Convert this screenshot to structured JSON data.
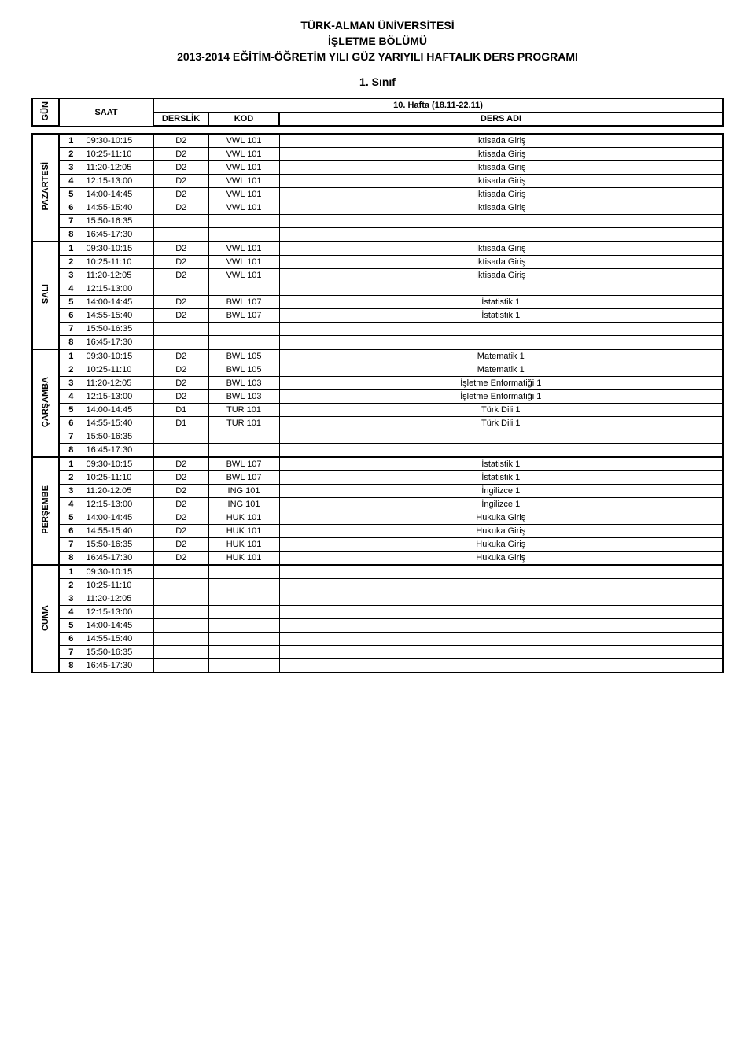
{
  "titles": {
    "uni": "TÜRK-ALMAN ÜNİVERSİTESİ",
    "dept": "İŞLETME BÖLÜMÜ",
    "program": "2013-2014 EĞİTİM-ÖĞRETİM YILI GÜZ YARIYILI HAFTALIK DERS PROGRAMI",
    "sinif": "1. Sınıf"
  },
  "headers": {
    "gun": "GÜN",
    "saat": "SAAT",
    "hafta": "10. Hafta (18.11-22.11)",
    "derslik": "DERSLİK",
    "kod": "KOD",
    "ders_adi": "DERS ADI"
  },
  "days": [
    {
      "name": "PAZARTESİ",
      "rows": [
        {
          "idx": "1",
          "saat": "09:30-10:15",
          "derslik": "D2",
          "kod": "VWL 101",
          "adi": "İktisada Giriş"
        },
        {
          "idx": "2",
          "saat": "10:25-11:10",
          "derslik": "D2",
          "kod": "VWL 101",
          "adi": "İktisada Giriş"
        },
        {
          "idx": "3",
          "saat": "11:20-12:05",
          "derslik": "D2",
          "kod": "VWL 101",
          "adi": "İktisada Giriş"
        },
        {
          "idx": "4",
          "saat": "12:15-13:00",
          "derslik": "D2",
          "kod": "VWL 101",
          "adi": "İktisada Giriş"
        },
        {
          "idx": "5",
          "saat": "14:00-14:45",
          "derslik": "D2",
          "kod": "VWL 101",
          "adi": "İktisada Giriş"
        },
        {
          "idx": "6",
          "saat": "14:55-15:40",
          "derslik": "D2",
          "kod": "VWL 101",
          "adi": "İktisada Giriş"
        },
        {
          "idx": "7",
          "saat": "15:50-16:35",
          "derslik": "",
          "kod": "",
          "adi": ""
        },
        {
          "idx": "8",
          "saat": "16:45-17:30",
          "derslik": "",
          "kod": "",
          "adi": ""
        }
      ]
    },
    {
      "name": "SALI",
      "rows": [
        {
          "idx": "1",
          "saat": "09:30-10:15",
          "derslik": "D2",
          "kod": "VWL 101",
          "adi": "İktisada Giriş"
        },
        {
          "idx": "2",
          "saat": "10:25-11:10",
          "derslik": "D2",
          "kod": "VWL 101",
          "adi": "İktisada Giriş"
        },
        {
          "idx": "3",
          "saat": "11:20-12:05",
          "derslik": "D2",
          "kod": "VWL 101",
          "adi": "İktisada Giriş"
        },
        {
          "idx": "4",
          "saat": "12:15-13:00",
          "derslik": "",
          "kod": "",
          "adi": ""
        },
        {
          "idx": "5",
          "saat": "14:00-14:45",
          "derslik": "D2",
          "kod": "BWL 107",
          "adi": "İstatistik 1"
        },
        {
          "idx": "6",
          "saat": "14:55-15:40",
          "derslik": "D2",
          "kod": "BWL 107",
          "adi": "İstatistik 1"
        },
        {
          "idx": "7",
          "saat": "15:50-16:35",
          "derslik": "",
          "kod": "",
          "adi": ""
        },
        {
          "idx": "8",
          "saat": "16:45-17:30",
          "derslik": "",
          "kod": "",
          "adi": ""
        }
      ]
    },
    {
      "name": "ÇARŞAMBA",
      "rows": [
        {
          "idx": "1",
          "saat": "09:30-10:15",
          "derslik": "D2",
          "kod": "BWL 105",
          "adi": "Matematik 1"
        },
        {
          "idx": "2",
          "saat": "10:25-11:10",
          "derslik": "D2",
          "kod": "BWL 105",
          "adi": "Matematik 1"
        },
        {
          "idx": "3",
          "saat": "11:20-12:05",
          "derslik": "D2",
          "kod": "BWL 103",
          "adi": "İşletme Enformatiği 1"
        },
        {
          "idx": "4",
          "saat": "12:15-13:00",
          "derslik": "D2",
          "kod": "BWL 103",
          "adi": "İşletme Enformatiği 1"
        },
        {
          "idx": "5",
          "saat": "14:00-14:45",
          "derslik": "D1",
          "kod": "TUR 101",
          "adi": "Türk Dili 1"
        },
        {
          "idx": "6",
          "saat": "14:55-15:40",
          "derslik": "D1",
          "kod": "TUR 101",
          "adi": "Türk Dili 1"
        },
        {
          "idx": "7",
          "saat": "15:50-16:35",
          "derslik": "",
          "kod": "",
          "adi": ""
        },
        {
          "idx": "8",
          "saat": "16:45-17:30",
          "derslik": "",
          "kod": "",
          "adi": ""
        }
      ]
    },
    {
      "name": "PERŞEMBE",
      "rows": [
        {
          "idx": "1",
          "saat": "09:30-10:15",
          "derslik": "D2",
          "kod": "BWL 107",
          "adi": "İstatistik 1"
        },
        {
          "idx": "2",
          "saat": "10:25-11:10",
          "derslik": "D2",
          "kod": "BWL 107",
          "adi": "İstatistik 1"
        },
        {
          "idx": "3",
          "saat": "11:20-12:05",
          "derslik": "D2",
          "kod": "ING 101",
          "adi": "İngilizce 1"
        },
        {
          "idx": "4",
          "saat": "12:15-13:00",
          "derslik": "D2",
          "kod": "ING 101",
          "adi": "İngilizce 1"
        },
        {
          "idx": "5",
          "saat": "14:00-14:45",
          "derslik": "D2",
          "kod": "HUK 101",
          "adi": "Hukuka Giriş"
        },
        {
          "idx": "6",
          "saat": "14:55-15:40",
          "derslik": "D2",
          "kod": "HUK 101",
          "adi": "Hukuka Giriş"
        },
        {
          "idx": "7",
          "saat": "15:50-16:35",
          "derslik": "D2",
          "kod": "HUK 101",
          "adi": "Hukuka Giriş"
        },
        {
          "idx": "8",
          "saat": "16:45-17:30",
          "derslik": "D2",
          "kod": "HUK 101",
          "adi": "Hukuka Giriş"
        }
      ]
    },
    {
      "name": "CUMA",
      "rows": [
        {
          "idx": "1",
          "saat": "09:30-10:15",
          "derslik": "",
          "kod": "",
          "adi": ""
        },
        {
          "idx": "2",
          "saat": "10:25-11:10",
          "derslik": "",
          "kod": "",
          "adi": ""
        },
        {
          "idx": "3",
          "saat": "11:20-12:05",
          "derslik": "",
          "kod": "",
          "adi": ""
        },
        {
          "idx": "4",
          "saat": "12:15-13:00",
          "derslik": "",
          "kod": "",
          "adi": ""
        },
        {
          "idx": "5",
          "saat": "14:00-14:45",
          "derslik": "",
          "kod": "",
          "adi": ""
        },
        {
          "idx": "6",
          "saat": "14:55-15:40",
          "derslik": "",
          "kod": "",
          "adi": ""
        },
        {
          "idx": "7",
          "saat": "15:50-16:35",
          "derslik": "",
          "kod": "",
          "adi": ""
        },
        {
          "idx": "8",
          "saat": "16:45-17:30",
          "derslik": "",
          "kod": "",
          "adi": ""
        }
      ]
    }
  ]
}
